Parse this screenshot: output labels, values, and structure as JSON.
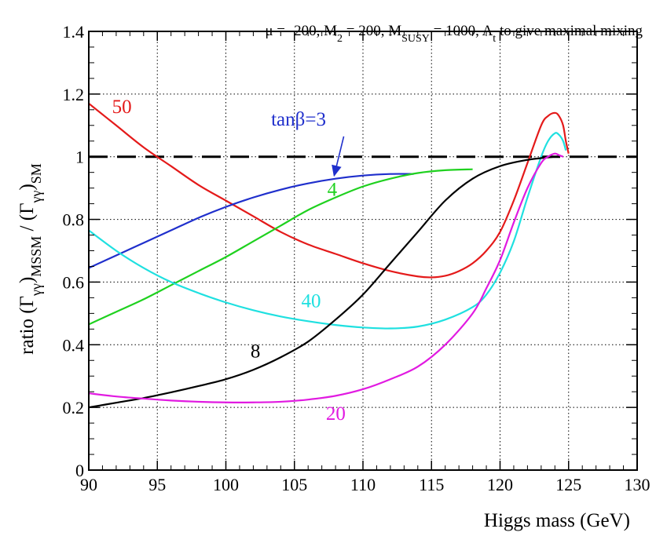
{
  "chart_data": {
    "type": "line",
    "header": {
      "mu": "μ = -200, M",
      "mu_sub": "2",
      "m2": " = 200, M",
      "msusy_sub": "SUSY",
      "msusy": " = 1000, A",
      "at_sub": "t",
      "tail": " to give maximal mixing"
    },
    "xlabel": "Higgs mass (GeV)",
    "ylabel": {
      "p1": "ratio (Γ",
      "s1": "γγ",
      "p2": ")",
      "s2": "MSSM",
      "p3": " / (Γ",
      "s3": "γγ",
      "p4": ")",
      "s4": "SM"
    },
    "xlim": [
      90,
      130
    ],
    "ylim": [
      0,
      1.4
    ],
    "xticks": [
      "90",
      "95",
      "100",
      "105",
      "110",
      "115",
      "120",
      "125",
      "130"
    ],
    "yticks": [
      "0",
      "0.2",
      "0.4",
      "0.6",
      "0.8",
      "1",
      "1.2",
      "1.4"
    ],
    "grid": true,
    "reference_line": {
      "y": 1.0,
      "style": "dashed",
      "color": "#000000"
    },
    "series": [
      {
        "name": "50",
        "color": "#e41a1a",
        "x": [
          90,
          92,
          94,
          96,
          98,
          100,
          102,
          104,
          106,
          108,
          110,
          112,
          114,
          115,
          116,
          117,
          118,
          119,
          120,
          121,
          122,
          123,
          123.5,
          124,
          124.3,
          124.6,
          124.8,
          125
        ],
        "y": [
          1.17,
          1.1,
          1.03,
          0.97,
          0.91,
          0.86,
          0.81,
          0.76,
          0.72,
          0.69,
          0.66,
          0.635,
          0.618,
          0.615,
          0.62,
          0.635,
          0.66,
          0.7,
          0.76,
          0.86,
          0.98,
          1.1,
          1.13,
          1.14,
          1.13,
          1.1,
          1.05,
          1.01
        ]
      },
      {
        "name": "3",
        "color": "#1f2fcc",
        "x": [
          90,
          92,
          94,
          96,
          98,
          100,
          102,
          104,
          106,
          108,
          110,
          112,
          113.7
        ],
        "y": [
          0.645,
          0.685,
          0.725,
          0.765,
          0.805,
          0.84,
          0.87,
          0.895,
          0.915,
          0.93,
          0.94,
          0.945,
          0.945
        ]
      },
      {
        "name": "4",
        "color": "#1fd11f",
        "x": [
          90,
          92,
          94,
          96,
          98,
          100,
          102,
          104,
          106,
          108,
          110,
          112,
          114,
          116,
          118
        ],
        "y": [
          0.465,
          0.505,
          0.545,
          0.59,
          0.635,
          0.68,
          0.73,
          0.78,
          0.83,
          0.87,
          0.905,
          0.93,
          0.948,
          0.957,
          0.96
        ]
      },
      {
        "name": "40",
        "color": "#1fe0e0",
        "x": [
          90,
          92,
          94,
          96,
          98,
          100,
          102,
          104,
          106,
          108,
          110,
          112,
          114,
          116,
          118,
          119,
          120,
          121,
          122,
          123,
          123.5,
          124,
          124.3,
          124.6,
          124.8
        ],
        "y": [
          0.765,
          0.7,
          0.645,
          0.6,
          0.565,
          0.535,
          0.51,
          0.49,
          0.475,
          0.463,
          0.455,
          0.452,
          0.458,
          0.48,
          0.52,
          0.56,
          0.63,
          0.73,
          0.87,
          1.0,
          1.05,
          1.075,
          1.07,
          1.05,
          1.02
        ]
      },
      {
        "name": "8",
        "color": "#000000",
        "x": [
          90,
          92,
          94,
          96,
          98,
          100,
          102,
          104,
          106,
          108,
          110,
          112,
          114,
          116,
          118,
          120,
          122,
          124
        ],
        "y": [
          0.2,
          0.215,
          0.23,
          0.248,
          0.268,
          0.29,
          0.32,
          0.36,
          0.41,
          0.48,
          0.56,
          0.66,
          0.76,
          0.86,
          0.93,
          0.97,
          0.99,
          1.0
        ]
      },
      {
        "name": "20",
        "color": "#e11ae1",
        "x": [
          90,
          92,
          94,
          96,
          98,
          100,
          102,
          104,
          106,
          108,
          110,
          112,
          114,
          116,
          118,
          119,
          120,
          121,
          122,
          123,
          123.5,
          124,
          124.3,
          124.6
        ],
        "y": [
          0.245,
          0.235,
          0.228,
          0.222,
          0.218,
          0.216,
          0.216,
          0.218,
          0.225,
          0.237,
          0.258,
          0.29,
          0.33,
          0.4,
          0.5,
          0.58,
          0.67,
          0.79,
          0.9,
          0.98,
          1.0,
          1.01,
          1.005,
          1.0
        ]
      }
    ],
    "labels": [
      {
        "series": "50",
        "text": "50",
        "color": "#e41a1a",
        "x": 91.7,
        "y": 1.14
      },
      {
        "series": "3",
        "text": "tanβ=3",
        "color": "#1f2fcc",
        "x": 103.3,
        "y": 1.1
      },
      {
        "series": "4",
        "text": "4",
        "color": "#1fd11f",
        "x": 107.4,
        "y": 0.875
      },
      {
        "series": "40",
        "text": "40",
        "color": "#1fe0e0",
        "x": 105.5,
        "y": 0.52
      },
      {
        "series": "8",
        "text": "8",
        "color": "#000000",
        "x": 101.8,
        "y": 0.36
      },
      {
        "series": "20",
        "text": "20",
        "color": "#e11ae1",
        "x": 107.3,
        "y": 0.16
      }
    ]
  }
}
